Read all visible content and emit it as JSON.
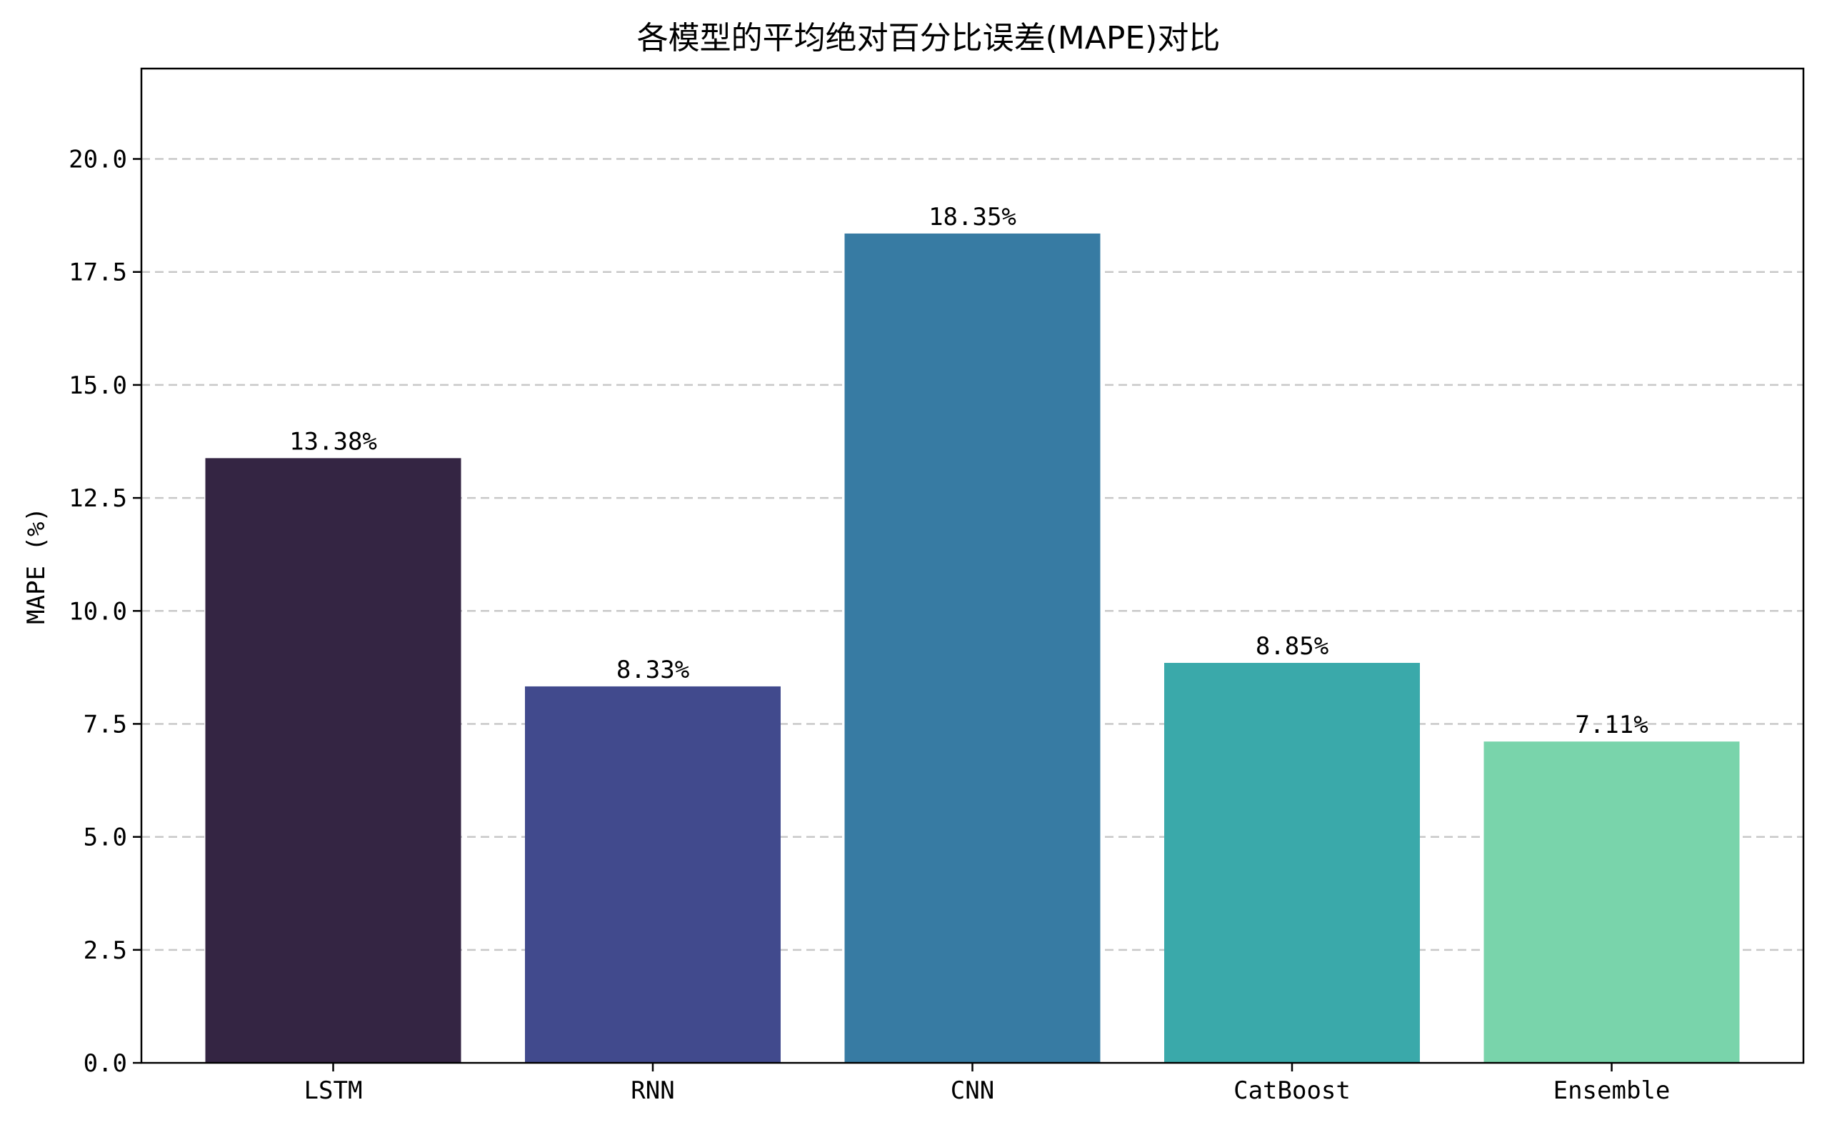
{
  "chart_data": {
    "type": "bar",
    "title": "各模型的平均绝对百分比误差(MAPE)对比",
    "xlabel": "",
    "ylabel": "MAPE (%)",
    "categories": [
      "LSTM",
      "RNN",
      "CNN",
      "CatBoost",
      "Ensemble"
    ],
    "values": [
      13.38,
      8.33,
      18.35,
      8.85,
      7.11
    ],
    "data_labels": [
      "13.38%",
      "8.33%",
      "18.35%",
      "8.85%",
      "7.11%"
    ],
    "colors": [
      "#342543",
      "#414a8d",
      "#377ba3",
      "#3aa9aa",
      "#79d4ab"
    ],
    "ylim": [
      0,
      22.0
    ],
    "yticks": [
      0,
      2.5,
      5,
      7.5,
      10,
      12.5,
      15,
      17.5,
      20
    ],
    "ytick_labels": [
      "0.0",
      "2.5",
      "5.0",
      "7.5",
      "10.0",
      "12.5",
      "15.0",
      "17.5",
      "20.0"
    ],
    "grid": "horizontal dashed",
    "legend": "none"
  }
}
